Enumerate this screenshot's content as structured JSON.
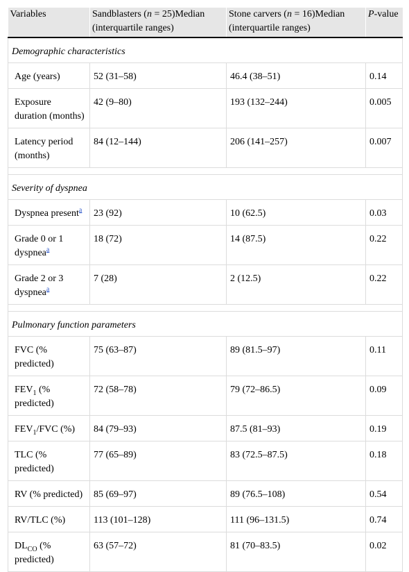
{
  "header": {
    "variables": "Variables",
    "sand_pre": "Sandblasters (",
    "sand_n": "n",
    "sand_post": " = 25)Median (interquartile ranges)",
    "stone_pre": "Stone carvers (",
    "stone_n": "n",
    "stone_post": " = 16)Median (interquartile ranges)",
    "p_italic": "P",
    "p_rest": "-value"
  },
  "sections": {
    "demographic": "Demographic characteristics",
    "dyspnea": "Severity of dyspnea",
    "pulmonary": "Pulmonary function parameters"
  },
  "footnote_mark": "a",
  "rows": {
    "age": {
      "label": "Age (years)",
      "sand": "52 (31–58)",
      "stone": "46.4 (38–51)",
      "p": "0.14"
    },
    "exposure": {
      "label": "Exposure duration (months)",
      "sand": "42 (9–80)",
      "stone": "193 (132–244)",
      "p": "0.005"
    },
    "latency": {
      "label": "Latency period (months)",
      "sand": "84 (12–144)",
      "stone": "206 (141–257)",
      "p": "0.007"
    },
    "dyspnea_present": {
      "label": "Dyspnea present",
      "sand": "23 (92)",
      "stone": "10 (62.5)",
      "p": "0.03"
    },
    "grade01": {
      "label": "Grade 0 or 1 dyspnea",
      "sand": "18 (72)",
      "stone": "14 (87.5)",
      "p": "0.22"
    },
    "grade23": {
      "label": "Grade 2 or 3 dyspnea",
      "sand": "7 (28)",
      "stone": "2 (12.5)",
      "p": "0.22"
    },
    "fvc": {
      "label": "FVC (% predicted)",
      "sand": "75 (63–87)",
      "stone": "89 (81.5–97)",
      "p": "0.11"
    },
    "fev1": {
      "label_pre": "FEV",
      "label_sub": "1",
      "label_post": " (% predicted)",
      "sand": "72 (58–78)",
      "stone": "79 (72–86.5)",
      "p": "0.09"
    },
    "fev1fvc": {
      "label_pre": "FEV",
      "label_sub": "1",
      "label_post": "/FVC (%)",
      "sand": "84 (79–93)",
      "stone": "87.5 (81–93)",
      "p": "0.19"
    },
    "tlc": {
      "label": "TLC (% predicted)",
      "sand": "77 (65–89)",
      "stone": "83 (72.5–87.5)",
      "p": "0.18"
    },
    "rv": {
      "label": "RV (% predicted)",
      "sand": "85 (69–97)",
      "stone": "89 (76.5–108)",
      "p": "0.54"
    },
    "rvtlc": {
      "label": "RV/TLC (%)",
      "sand": "113 (101–128)",
      "stone": "111 (96–131.5)",
      "p": "0.74"
    },
    "dlco": {
      "label_pre": "DL",
      "label_sub": "CO",
      "label_post": " (% predicted)",
      "sand": "63 (57–72)",
      "stone": "81 (70–83.5)",
      "p": "0.02"
    }
  }
}
